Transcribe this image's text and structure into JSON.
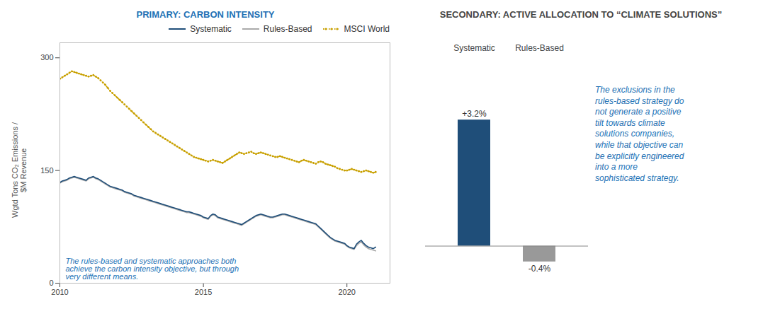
{
  "chart_data": [
    {
      "type": "line",
      "title": "PRIMARY: CARBON INTENSITY",
      "ylabel": "Wgtd Tons CO₂ Emissions /\n$M Revenue",
      "annotation": "The rules-based and systematic approaches both\nachieve the carbon intensity objective, but through\nvery different means.",
      "x": [
        2010.0,
        2010.083,
        2010.167,
        2010.25,
        2010.333,
        2010.417,
        2010.5,
        2010.583,
        2010.667,
        2010.75,
        2010.833,
        2010.917,
        2011.0,
        2011.083,
        2011.167,
        2011.25,
        2011.333,
        2011.417,
        2011.5,
        2011.583,
        2011.667,
        2011.75,
        2011.833,
        2011.917,
        2012.0,
        2012.083,
        2012.167,
        2012.25,
        2012.333,
        2012.417,
        2012.5,
        2012.583,
        2012.667,
        2012.75,
        2012.833,
        2012.917,
        2013.0,
        2013.083,
        2013.167,
        2013.25,
        2013.333,
        2013.417,
        2013.5,
        2013.583,
        2013.667,
        2013.75,
        2013.833,
        2013.917,
        2014.0,
        2014.083,
        2014.167,
        2014.25,
        2014.333,
        2014.417,
        2014.5,
        2014.583,
        2014.667,
        2014.75,
        2014.833,
        2014.917,
        2015.0,
        2015.083,
        2015.167,
        2015.25,
        2015.333,
        2015.417,
        2015.5,
        2015.583,
        2015.667,
        2015.75,
        2015.833,
        2015.917,
        2016.0,
        2016.083,
        2016.167,
        2016.25,
        2016.333,
        2016.417,
        2016.5,
        2016.583,
        2016.667,
        2016.75,
        2016.833,
        2016.917,
        2017.0,
        2017.083,
        2017.167,
        2017.25,
        2017.333,
        2017.417,
        2017.5,
        2017.583,
        2017.667,
        2017.75,
        2017.833,
        2017.917,
        2018.0,
        2018.083,
        2018.167,
        2018.25,
        2018.333,
        2018.417,
        2018.5,
        2018.583,
        2018.667,
        2018.75,
        2018.833,
        2018.917,
        2019.0,
        2019.083,
        2019.167,
        2019.25,
        2019.333,
        2019.417,
        2019.5,
        2019.583,
        2019.667,
        2019.75,
        2019.833,
        2019.917,
        2020.0,
        2020.083,
        2020.167,
        2020.25,
        2020.333,
        2020.417,
        2020.5,
        2020.583,
        2020.667,
        2020.75,
        2020.833,
        2020.917,
        2021.0
      ],
      "series": [
        {
          "name": "Systematic",
          "color": "#1f4e79",
          "line_style": "solid",
          "marker": "none",
          "values": [
            134,
            136,
            137,
            138,
            140,
            141,
            142,
            141,
            140,
            139,
            138,
            137,
            140,
            141,
            142,
            140,
            139,
            137,
            135,
            133,
            131,
            129,
            128,
            127,
            126,
            125,
            124,
            122,
            121,
            120,
            119,
            117,
            116,
            115,
            114,
            113,
            112,
            111,
            110,
            109,
            108,
            107,
            106,
            105,
            104,
            103,
            102,
            101,
            100,
            99,
            98,
            97,
            96,
            95,
            95,
            94,
            93,
            92,
            91,
            90,
            88,
            87,
            86,
            90,
            92,
            91,
            88,
            87,
            86,
            85,
            84,
            83,
            82,
            81,
            80,
            79,
            78,
            80,
            82,
            84,
            86,
            88,
            90,
            91,
            92,
            91,
            90,
            89,
            88,
            88,
            89,
            90,
            91,
            92,
            92,
            91,
            90,
            89,
            88,
            87,
            86,
            85,
            84,
            83,
            82,
            81,
            80,
            79,
            76,
            73,
            70,
            67,
            64,
            61,
            59,
            57,
            56,
            55,
            54,
            53,
            50,
            48,
            47,
            46,
            52,
            55,
            57,
            53,
            50,
            48,
            47,
            46,
            48
          ]
        },
        {
          "name": "Rules-Based",
          "color": "#aaaaaa",
          "line_style": "solid",
          "marker": "none",
          "values": [
            133,
            135,
            136,
            137,
            139,
            140,
            141,
            140,
            139,
            138,
            137,
            136,
            139,
            140,
            141,
            139,
            138,
            136,
            134,
            132,
            130,
            128,
            127,
            126,
            125,
            124,
            123,
            121,
            120,
            119,
            118,
            116,
            115,
            114,
            113,
            112,
            111,
            110,
            109,
            108,
            107,
            106,
            105,
            104,
            103,
            102,
            101,
            100,
            99,
            98,
            97,
            96,
            95,
            94,
            94,
            93,
            92,
            91,
            90,
            89,
            87,
            86,
            85,
            89,
            91,
            90,
            87,
            86,
            85,
            84,
            83,
            82,
            81,
            80,
            79,
            78,
            77,
            79,
            81,
            83,
            85,
            87,
            89,
            90,
            91,
            90,
            89,
            88,
            87,
            87,
            88,
            89,
            90,
            91,
            91,
            90,
            89,
            88,
            87,
            86,
            85,
            84,
            83,
            82,
            81,
            80,
            79,
            78,
            75,
            72,
            69,
            66,
            63,
            60,
            58,
            56,
            55,
            54,
            53,
            52,
            49,
            47,
            46,
            45,
            50,
            53,
            55,
            51,
            48,
            46,
            45,
            44,
            43
          ]
        },
        {
          "name": "MSCI World",
          "color": "#c8a000",
          "line_style": "dotted",
          "marker": "circle",
          "values": [
            272,
            274,
            276,
            278,
            280,
            282,
            281,
            280,
            279,
            278,
            277,
            276,
            275,
            276,
            277,
            275,
            273,
            270,
            267,
            264,
            260,
            256,
            253,
            250,
            247,
            244,
            241,
            238,
            235,
            232,
            229,
            226,
            223,
            220,
            217,
            214,
            211,
            208,
            205,
            202,
            200,
            198,
            196,
            194,
            192,
            190,
            188,
            186,
            184,
            182,
            180,
            178,
            176,
            174,
            172,
            170,
            168,
            167,
            166,
            165,
            164,
            163,
            162,
            163,
            164,
            163,
            162,
            161,
            160,
            162,
            164,
            166,
            168,
            170,
            172,
            174,
            173,
            172,
            173,
            174,
            175,
            173,
            172,
            173,
            174,
            173,
            172,
            171,
            170,
            169,
            168,
            168,
            169,
            168,
            167,
            166,
            165,
            164,
            163,
            162,
            161,
            163,
            164,
            163,
            162,
            161,
            160,
            159,
            161,
            162,
            161,
            159,
            158,
            157,
            156,
            155,
            153,
            152,
            151,
            150,
            150,
            151,
            152,
            151,
            150,
            149,
            148,
            149,
            150,
            149,
            148,
            147,
            148
          ]
        }
      ],
      "xlim": [
        2010,
        2021.5
      ],
      "xticks": [
        2010,
        2015,
        2020
      ],
      "ylim": [
        0,
        320
      ],
      "yticks": [
        0,
        150,
        300
      ],
      "grid": false,
      "legend": "upper right"
    },
    {
      "type": "bar",
      "title": "SECONDARY: ACTIVE ALLOCATION TO “CLIMATE SOLUTIONS”",
      "annotation": "The exclusions in the\nrules-based strategy do\nnot generate a positive\ntilt towards climate\nsolutions companies,\nwhile that objective can\nbe explicitly engineered\ninto a more\nsophisticated strategy.",
      "categories": [
        "Systematic",
        "Rules-Based"
      ],
      "values": [
        3.2,
        -0.4
      ],
      "value_labels": [
        "+3.2%",
        "-0.4%"
      ],
      "colors": [
        "#1f4e79",
        "#999999"
      ],
      "ylim": [
        -1.3,
        4.8
      ],
      "data_labels": true,
      "tick_labels": "x",
      "grid": false
    }
  ]
}
